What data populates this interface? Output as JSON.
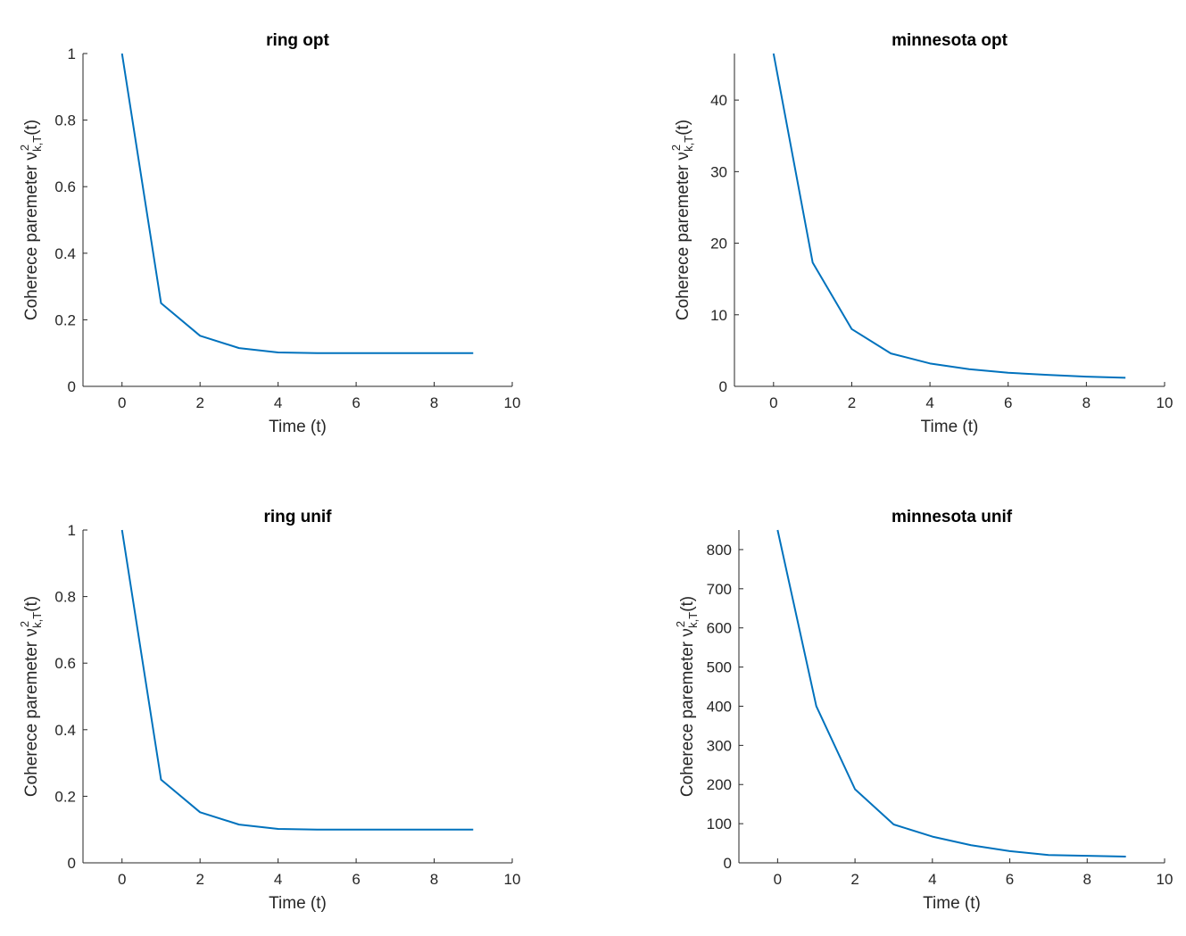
{
  "chart_data": [
    {
      "type": "line",
      "title": "ring opt",
      "xlabel": "Time (t)",
      "ylabel": "Coherece paremeter ν",
      "ylabel_sup": "2",
      "ylabel_sub": "k,T",
      "ylabel_tail": "(t)",
      "xlim": [
        -1,
        10
      ],
      "ylim": [
        0,
        1
      ],
      "xticks": [
        0,
        2,
        4,
        6,
        8,
        10
      ],
      "yticks": [
        0,
        0.2,
        0.4,
        0.6,
        0.8,
        1
      ],
      "x": [
        0,
        1,
        2,
        3,
        4,
        5,
        6,
        7,
        8,
        9
      ],
      "y": [
        1.0,
        0.25,
        0.152,
        0.115,
        0.102,
        0.1,
        0.1,
        0.1,
        0.1,
        0.1
      ],
      "color": "#0072BD"
    },
    {
      "type": "line",
      "title": "minnesota opt",
      "xlabel": "Time (t)",
      "ylabel": "Coherece paremeter ν",
      "ylabel_sup": "2",
      "ylabel_sub": "k,T",
      "ylabel_tail": "(t)",
      "xlim": [
        -1,
        10
      ],
      "ylim": [
        0,
        46.5
      ],
      "xticks": [
        0,
        2,
        4,
        6,
        8,
        10
      ],
      "yticks": [
        0,
        10,
        20,
        30,
        40
      ],
      "x": [
        0,
        1,
        2,
        3,
        4,
        5,
        6,
        7,
        8,
        9
      ],
      "y": [
        46.5,
        17.3,
        8.0,
        4.6,
        3.2,
        2.4,
        1.9,
        1.6,
        1.35,
        1.2
      ],
      "color": "#0072BD"
    },
    {
      "type": "line",
      "title": "ring unif",
      "xlabel": "Time (t)",
      "ylabel": "Coherece paremeter ν",
      "ylabel_sup": "2",
      "ylabel_sub": "k,T",
      "ylabel_tail": "(t)",
      "xlim": [
        -1,
        10
      ],
      "ylim": [
        0,
        1
      ],
      "xticks": [
        0,
        2,
        4,
        6,
        8,
        10
      ],
      "yticks": [
        0,
        0.2,
        0.4,
        0.6,
        0.8,
        1
      ],
      "x": [
        0,
        1,
        2,
        3,
        4,
        5,
        6,
        7,
        8,
        9
      ],
      "y": [
        1.0,
        0.25,
        0.152,
        0.115,
        0.102,
        0.1,
        0.1,
        0.1,
        0.1,
        0.1
      ],
      "color": "#0072BD"
    },
    {
      "type": "line",
      "title": "minnesota unif",
      "xlabel": "Time (t)",
      "ylabel": "Coherece paremeter ν",
      "ylabel_sup": "2",
      "ylabel_sub": "k,T",
      "ylabel_tail": "(t)",
      "xlim": [
        -1,
        10
      ],
      "ylim": [
        0,
        850
      ],
      "xticks": [
        0,
        2,
        4,
        6,
        8,
        10
      ],
      "yticks": [
        0,
        100,
        200,
        300,
        400,
        500,
        600,
        700,
        800
      ],
      "x": [
        0,
        1,
        2,
        3,
        4,
        5,
        6,
        7,
        8,
        9
      ],
      "y": [
        850,
        400,
        188,
        98,
        67,
        45,
        30,
        20,
        18,
        16
      ],
      "color": "#0072BD"
    }
  ]
}
